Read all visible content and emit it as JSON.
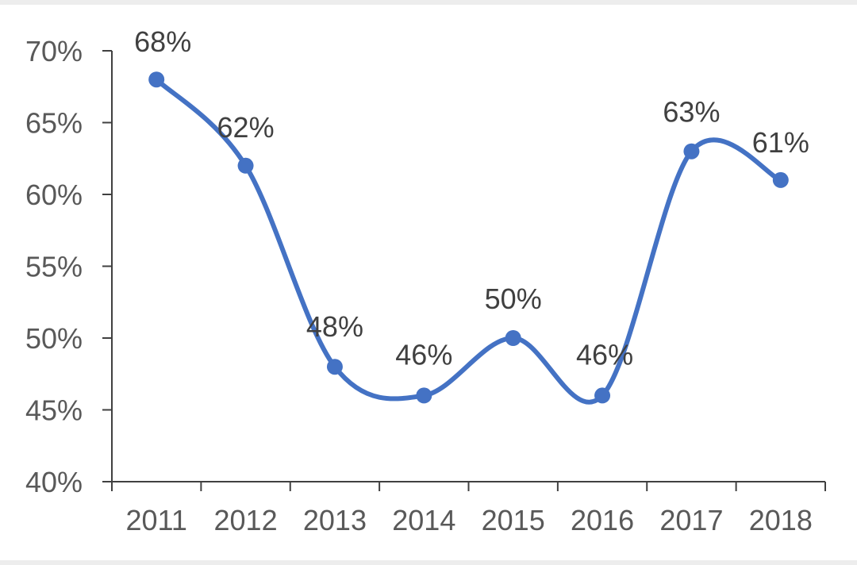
{
  "chart_data": {
    "type": "line",
    "title": "",
    "xlabel": "",
    "ylabel": "",
    "categories": [
      "2011",
      "2012",
      "2013",
      "2014",
      "2015",
      "2016",
      "2017",
      "2018"
    ],
    "series": [
      {
        "values": [
          68,
          62,
          48,
          46,
          50,
          46,
          63,
          61
        ]
      }
    ],
    "data_labels": [
      "68%",
      "62%",
      "48%",
      "46%",
      "50%",
      "46%",
      "63%",
      "61%"
    ],
    "y_ticks": [
      40,
      45,
      50,
      55,
      60,
      65,
      70
    ],
    "y_tick_labels": [
      "40%",
      "45%",
      "50%",
      "55%",
      "60%",
      "65%",
      "70%"
    ],
    "ylim": [
      40,
      70
    ],
    "grid": false,
    "legend": "none",
    "smooth": true,
    "colors": {
      "line": "#4472c4",
      "axis": "#404040",
      "tick_text": "#595959",
      "label_text": "#404040"
    }
  }
}
